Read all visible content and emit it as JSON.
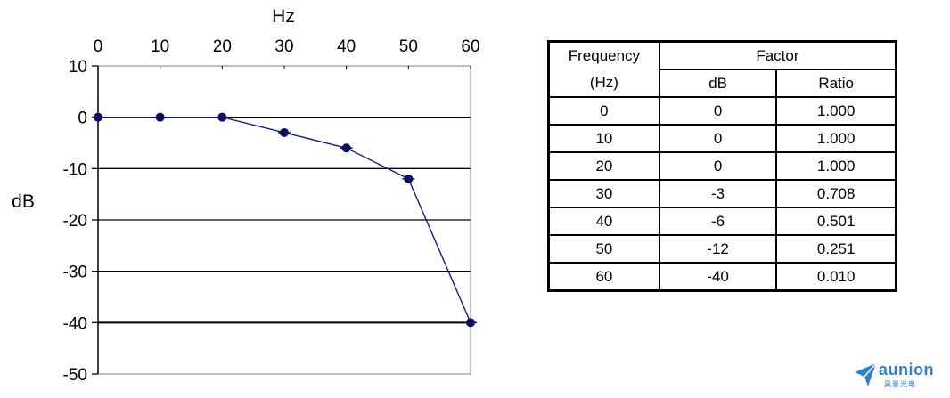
{
  "chart_data": {
    "type": "line",
    "xlabel": "Hz",
    "ylabel": "dB",
    "x_ticks": [
      0,
      10,
      20,
      30,
      40,
      50,
      60
    ],
    "y_ticks": [
      10,
      0,
      -10,
      -20,
      -30,
      -40,
      -50
    ],
    "xlim": [
      0,
      60
    ],
    "ylim": [
      -50,
      10
    ],
    "x_axis_position": "top",
    "grid": "horizontal",
    "series": [
      {
        "x": [
          0,
          10,
          20,
          30,
          40,
          50,
          60
        ],
        "y": [
          0,
          0,
          0,
          -3,
          -6,
          -12,
          -40
        ]
      }
    ],
    "colors": {
      "line": "#1a1a8c",
      "marker": "#0d0d66",
      "grid": "#000000",
      "frame": "#808080"
    }
  },
  "table": {
    "header": {
      "frequency_line1": "Frequency",
      "frequency_line2": "(Hz)",
      "factor": "Factor",
      "db": "dB",
      "ratio": "Ratio"
    },
    "rows": [
      {
        "freq": "0",
        "db": "0",
        "ratio": "1.000"
      },
      {
        "freq": "10",
        "db": "0",
        "ratio": "1.000"
      },
      {
        "freq": "20",
        "db": "0",
        "ratio": "1.000"
      },
      {
        "freq": "30",
        "db": "-3",
        "ratio": "0.708"
      },
      {
        "freq": "40",
        "db": "-6",
        "ratio": "0.501"
      },
      {
        "freq": "50",
        "db": "-12",
        "ratio": "0.251"
      },
      {
        "freq": "60",
        "db": "-40",
        "ratio": "0.010"
      }
    ]
  },
  "logo": {
    "brand": "aunion",
    "subtitle": "昊量光电",
    "color": "#2f7fd6",
    "icon": "paper-plane-icon"
  }
}
